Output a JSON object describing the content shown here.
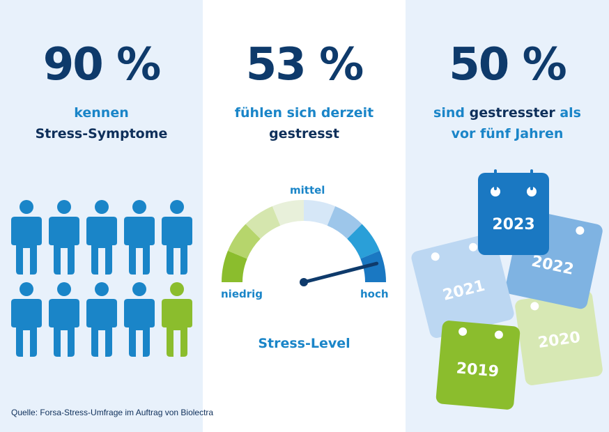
{
  "columns": {
    "symptoms": {
      "percent": "90 %",
      "line1": "kennen",
      "line2": "Stress-Symptome",
      "people_total": 10,
      "people_highlighted": 1
    },
    "current": {
      "percent": "53 %",
      "line1": "fühlen sich derzeit",
      "line2": "gestresst",
      "gauge": {
        "label_low": "niedrig",
        "label_mid": "mittel",
        "label_high": "hoch",
        "caption": "Stress-Level",
        "needle_level": 0.92
      }
    },
    "trend": {
      "percent": "50 %",
      "line1_a": "sind ",
      "line1_b": "gestresster",
      "line1_c": " als",
      "line2": "vor fünf Jahren",
      "years": [
        "2023",
        "2022",
        "2021",
        "2020",
        "2019"
      ]
    }
  },
  "source": "Quelle: Forsa-Stress-Umfrage im Auftrag von Biolectra",
  "colors": {
    "dark_navy": "#0e3a6b",
    "accent_blue": "#1a85c8",
    "person_blue": "#1a85c8",
    "person_green": "#8bbd2d",
    "background_tint": "#e8f1fb"
  }
}
